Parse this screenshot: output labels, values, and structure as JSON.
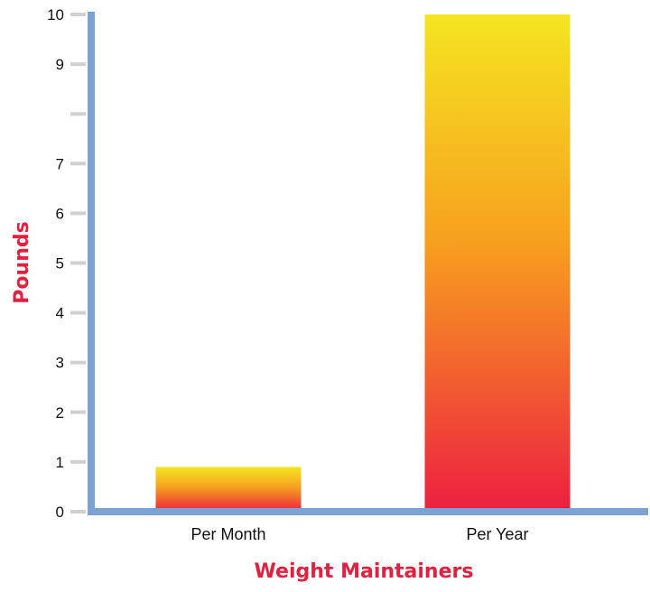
{
  "chart_data": {
    "type": "bar",
    "categories": [
      "Per Month",
      "Per Year"
    ],
    "values": [
      0.9,
      10
    ],
    "title": "",
    "xlabel": "Weight Maintainers",
    "ylabel": "Pounds",
    "ylim": [
      0,
      10
    ],
    "ytick_labels": [
      "0",
      "1",
      "2",
      "3",
      "4",
      "5",
      "6",
      "7",
      "",
      "9",
      "10"
    ],
    "grid": false,
    "legend": "none",
    "colors": {
      "axis": "#7ba3d6",
      "tick": "#d0d0d0",
      "bar_top": "#f4e521",
      "bar_mid": "#f7a11e",
      "bar_bottom": "#ec1f40",
      "label_accent": "#e5203f"
    }
  }
}
